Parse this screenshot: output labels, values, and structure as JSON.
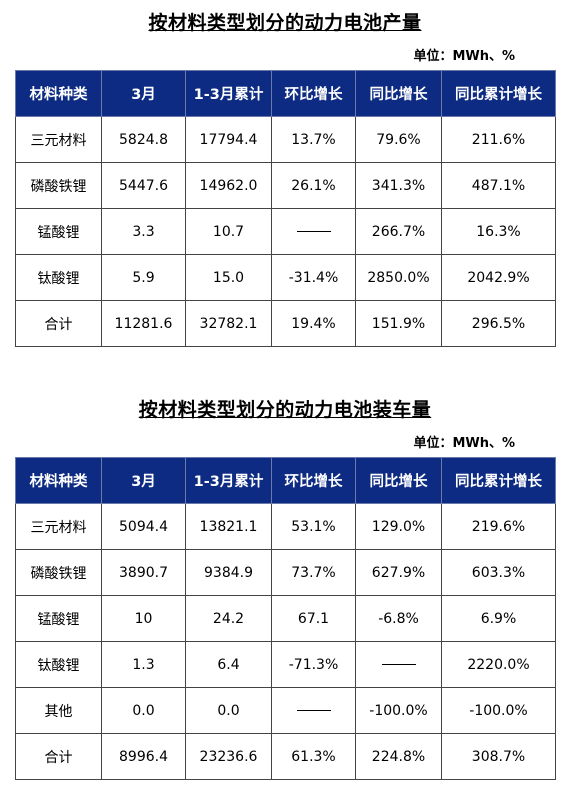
{
  "section1": {
    "title": "按材料类型划分的动力电池产量",
    "unit": "单位：MWh、%",
    "headers": [
      "材料种类",
      "3月",
      "1-3月累计",
      "环比增长",
      "同比增长",
      "同比累计增长"
    ],
    "rows": [
      [
        "三元材料",
        "5824.8",
        "17794.4",
        "13.7%",
        "79.6%",
        "211.6%"
      ],
      [
        "磷酸铁锂",
        "5447.6",
        "14962.0",
        "26.1%",
        "341.3%",
        "487.1%"
      ],
      [
        "锰酸锂",
        "3.3",
        "10.7",
        "——",
        "266.7%",
        "16.3%"
      ],
      [
        "钛酸锂",
        "5.9",
        "15.0",
        "-31.4%",
        "2850.0%",
        "2042.9%"
      ],
      [
        "合计",
        "11281.6",
        "32782.1",
        "19.4%",
        "151.9%",
        "296.5%"
      ]
    ]
  },
  "section2": {
    "title": "按材料类型划分的动力电池装车量",
    "unit": "单位：MWh、%",
    "headers": [
      "材料种类",
      "3月",
      "1-3月累计",
      "环比增长",
      "同比增长",
      "同比累计增长"
    ],
    "rows": [
      [
        "三元材料",
        "5094.4",
        "13821.1",
        "53.1%",
        "129.0%",
        "219.6%"
      ],
      [
        "磷酸铁锂",
        "3890.7",
        "9384.9",
        "73.7%",
        "627.9%",
        "603.3%"
      ],
      [
        "锰酸锂",
        "10",
        "24.2",
        "67.1",
        "-6.8%",
        "6.9%"
      ],
      [
        "钛酸锂",
        "1.3",
        "6.4",
        "-71.3%",
        "——",
        "2220.0%"
      ],
      [
        "其他",
        "0.0",
        "0.0",
        "——",
        "-100.0%",
        "-100.0%"
      ],
      [
        "合计",
        "8996.4",
        "23236.6",
        "61.3%",
        "224.8%",
        "308.7%"
      ]
    ]
  },
  "colors": {
    "header_bg": "#0d2b82",
    "header_text": "#ffffff"
  }
}
